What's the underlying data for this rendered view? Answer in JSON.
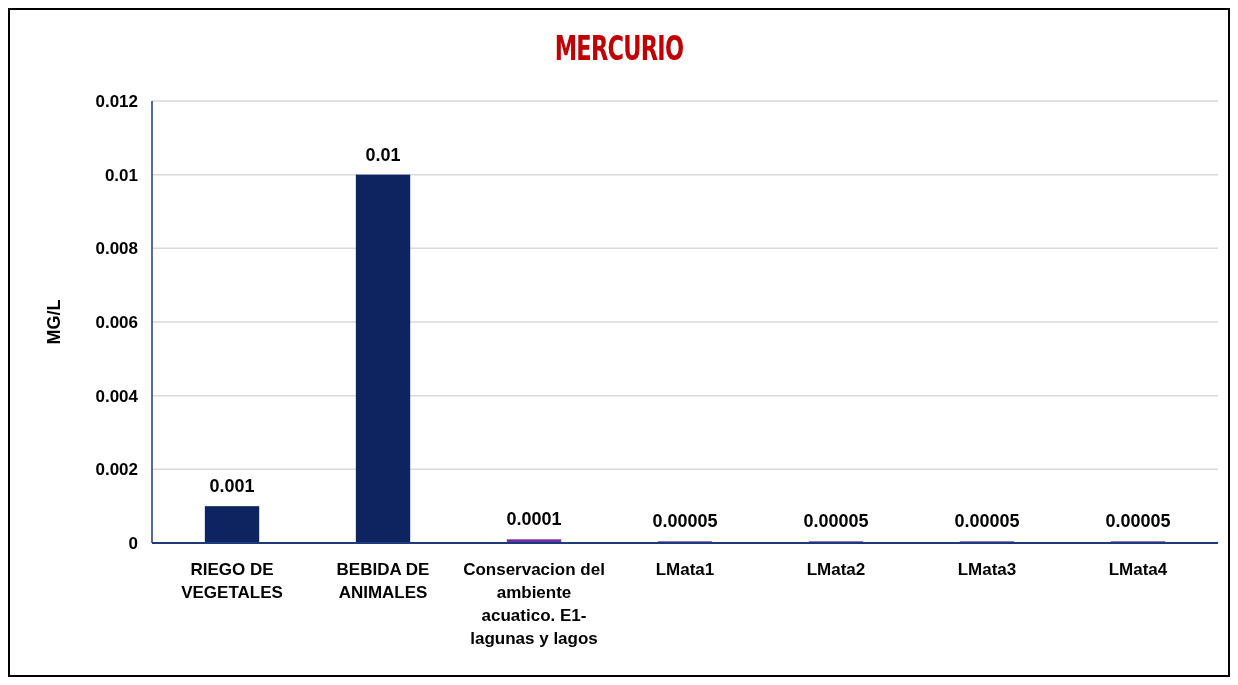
{
  "chart_data": {
    "type": "bar",
    "title": "MERCURIO",
    "ylabel": "MG/L",
    "categories": [
      "RIEGO DE VEGETALES",
      "BEBIDA DE ANIMALES",
      "Conservacion del ambiente acuatico. E1-lagunas y lagos",
      "LMata1",
      "LMata2",
      "LMata3",
      "LMata4"
    ],
    "values": [
      0.001,
      0.01,
      0.0001,
      5e-05,
      5e-05,
      5e-05,
      5e-05
    ],
    "colors": [
      "#0d2461",
      "#0d2461",
      "#7030a0",
      "#7f5fb0",
      "#7f5fb0",
      "#7f5fb0",
      "#7f5fb0"
    ],
    "ylim": [
      0,
      0.012
    ],
    "yticks": [
      0,
      0.002,
      0.004,
      0.006,
      0.008,
      0.01,
      0.012
    ],
    "value_labels": [
      "0.001",
      "0.01",
      "0.0001",
      "0.00005",
      "0.00005",
      "0.00005",
      "0.00005"
    ],
    "grid": "y"
  }
}
